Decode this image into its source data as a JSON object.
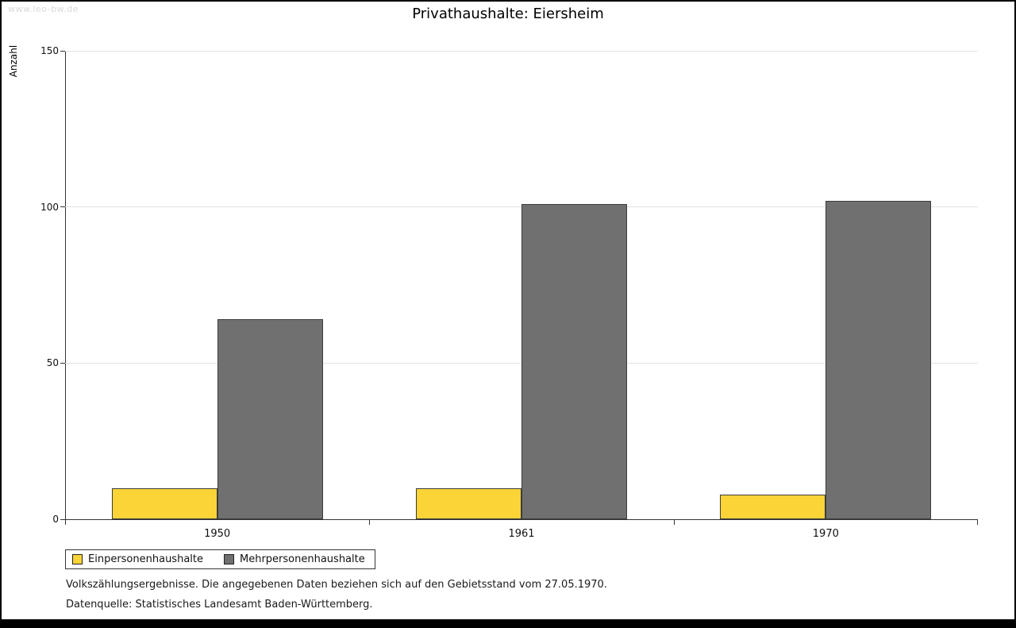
{
  "watermark": "www.leo-bw.de",
  "title": "Privathaushalte: Eiersheim",
  "ylabel": "Anzahl",
  "legend": {
    "items": [
      {
        "label": "Einpersonenhaushalte",
        "color": "#FBD437"
      },
      {
        "label": "Mehrpersonenhaushalte",
        "color": "#707070"
      }
    ]
  },
  "footnotes": [
    "Volkszählungsergebnisse. Die angegebenen Daten beziehen sich auf den Gebietsstand vom 27.05.1970.",
    "Datenquelle: Statistisches Landesamt Baden-Württemberg."
  ],
  "chart_data": {
    "type": "bar",
    "categories": [
      "1950",
      "1961",
      "1970"
    ],
    "series": [
      {
        "name": "Einpersonenhaushalte",
        "color": "#FBD437",
        "values": [
          10,
          10,
          8
        ]
      },
      {
        "name": "Mehrpersonenhaushalte",
        "color": "#707070",
        "values": [
          64,
          101,
          102
        ]
      }
    ],
    "title": "Privathaushalte: Eiersheim",
    "xlabel": "",
    "ylabel": "Anzahl",
    "ylim": [
      0,
      150
    ],
    "yticks": [
      0,
      50,
      100,
      150
    ],
    "grid": true,
    "legend_position": "bottom-left",
    "bar_edge_color": "#3d3d3d"
  }
}
